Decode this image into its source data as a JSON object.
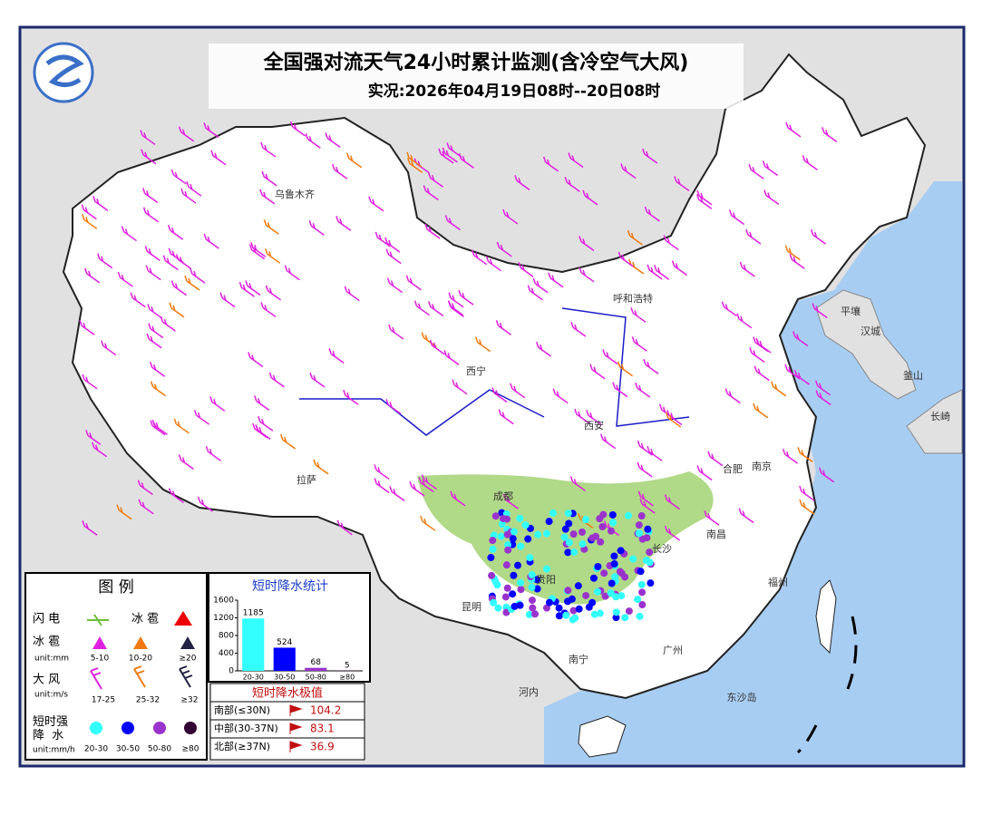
{
  "header": {
    "title": "全国强对流天气24小时累计监测(含冷空气大风)",
    "subtitle": "实况:2026年04月19日08时--20日08时"
  },
  "map_labels": [
    "乌鲁木齐",
    "西宁",
    "拉萨",
    "成都",
    "昆明",
    "贵阳",
    "南宁",
    "长沙",
    "南昌",
    "福州",
    "广州",
    "合肥",
    "南京",
    "西安",
    "呼和浩特",
    "平壤",
    "汉城",
    "釜山",
    "长崎",
    "东沙岛",
    "河内"
  ],
  "legend": {
    "title": "图  例",
    "lightning": "闪 电",
    "hail": "冰 雹",
    "hail_size": {
      "label": "冰 雹",
      "unit": "unit:mm",
      "items": [
        "5-10",
        "10-20",
        "≥20"
      ]
    },
    "wind": {
      "label": "大 风",
      "unit": "unit:m/s",
      "items": [
        "17-25",
        "25-32",
        "≥32"
      ]
    },
    "rain": {
      "label": "短时强\n降  水",
      "unit": "unit:mm/h",
      "items": [
        "20-30",
        "30-50",
        "50-80",
        "≥80"
      ]
    }
  },
  "chart_data": {
    "type": "bar",
    "title": "短时降水统计",
    "categories": [
      "20-30",
      "30-50",
      "50-80",
      "≥80"
    ],
    "values": [
      1185,
      524,
      68,
      5
    ],
    "colors": [
      "#33ffff",
      "#0000ff",
      "#9933cc",
      "#330033"
    ],
    "ylim": [
      0,
      1600
    ],
    "yticks": [
      0,
      400,
      800,
      1200,
      1600
    ]
  },
  "extremes": {
    "title": "短时降水极值",
    "rows": [
      {
        "region": "南部(≤30N)",
        "value": "104.2"
      },
      {
        "region": "中部(30-37N)",
        "value": "83.1"
      },
      {
        "region": "北部(≥37N)",
        "value": "36.9"
      }
    ]
  }
}
